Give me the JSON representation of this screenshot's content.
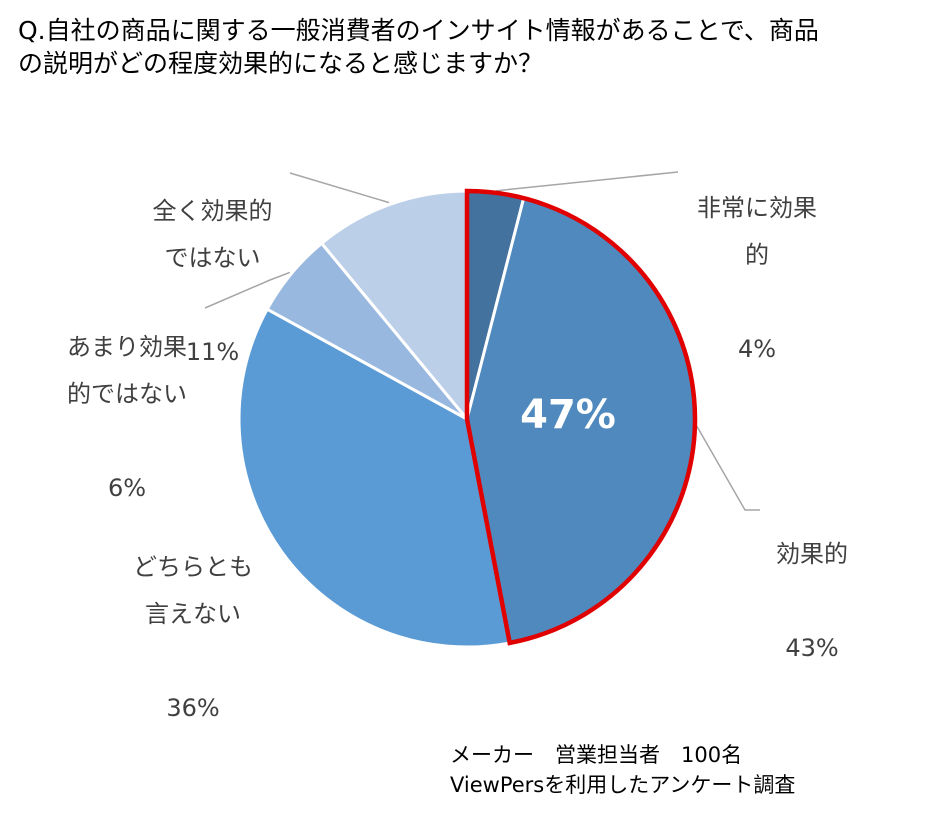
{
  "title": "Q.自社の商品に関する一般消費者のインサイト情報があることで、商品\nの説明がどの程度効果的になると感じますか？",
  "chart_data": {
    "type": "pie",
    "title": "Q.自社の商品に関する一般消費者のインサイト情報があることで、商品の説明がどの程度効果的になると感じますか？",
    "start": "12 o'clock, clockwise",
    "slices": [
      {
        "label": "非常に効果的",
        "label_lines": "非常に効果\n的",
        "value": 4,
        "percent_label": "4%",
        "color": "#44729f"
      },
      {
        "label": "効果的",
        "label_lines": "効果的",
        "value": 43,
        "percent_label": "43%",
        "color": "#4f89bd"
      },
      {
        "label": "どちらとも言えない",
        "label_lines": "どちらとも\n言えない",
        "value": 36,
        "percent_label": "36%",
        "color": "#5b9bd5"
      },
      {
        "label": "あまり効果的ではない",
        "label_lines": "あまり効果\n的ではない",
        "value": 6,
        "percent_label": "6%",
        "color": "#98b8df"
      },
      {
        "label": "全く効果的ではない",
        "label_lines": "全く効果的\nではない",
        "value": 11,
        "percent_label": "11%",
        "color": "#bccfe8"
      }
    ],
    "highlight": {
      "text": "47%",
      "outline_color": "#e00000"
    },
    "legend": "none"
  },
  "footnote": {
    "line1": "メーカー　営業担当者　100名",
    "line2": "ViewPersを利用したアンケート調査"
  }
}
